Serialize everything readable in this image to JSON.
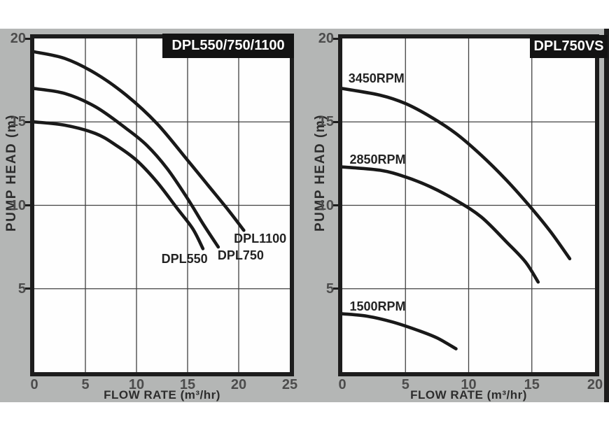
{
  "theme": {
    "panel_color": "#b4b6b5",
    "plot_background": "#fefefe",
    "border_color": "#1d1d1d",
    "grid_color": "#414141",
    "curve_color": "#191919",
    "title_box_background": "#131313",
    "title_text_color": "#ffffff",
    "tick_text_color": "#4c4c4c",
    "label_text_color": "#2d2d2d"
  },
  "chart_data": [
    {
      "type": "line",
      "title": "DPL550/750/1100",
      "xlabel": "FLOW RATE (m³/hr)",
      "ylabel": "PUMP HEAD  (m)",
      "xlim": [
        0,
        25
      ],
      "ylim": [
        0,
        20
      ],
      "x_ticks": [
        0,
        5,
        10,
        15,
        20,
        25
      ],
      "y_ticks": [
        5,
        10,
        15,
        20
      ],
      "grid": true,
      "grid_step": 5,
      "legend_position": "inline-labels",
      "series": [
        {
          "name": "DPL550",
          "label_pos": [
            14.7,
            6.8
          ],
          "points": [
            [
              0,
              15.0
            ],
            [
              3,
              14.8
            ],
            [
              6,
              14.3
            ],
            [
              8,
              13.6
            ],
            [
              10,
              12.7
            ],
            [
              12,
              11.4
            ],
            [
              14,
              9.8
            ],
            [
              15.5,
              8.6
            ],
            [
              16.5,
              7.4
            ]
          ]
        },
        {
          "name": "DPL750",
          "label_pos": [
            20.2,
            7.0
          ],
          "points": [
            [
              0,
              17.0
            ],
            [
              3,
              16.7
            ],
            [
              6,
              15.9
            ],
            [
              9,
              14.6
            ],
            [
              11,
              13.6
            ],
            [
              13,
              12.2
            ],
            [
              15,
              10.4
            ],
            [
              16.5,
              8.9
            ],
            [
              18,
              7.5
            ]
          ]
        },
        {
          "name": "DPL1100",
          "label_pos": [
            22.1,
            8.0
          ],
          "points": [
            [
              0,
              19.2
            ],
            [
              3,
              18.8
            ],
            [
              6,
              17.9
            ],
            [
              9,
              16.6
            ],
            [
              12,
              14.9
            ],
            [
              15,
              12.7
            ],
            [
              17,
              11.2
            ],
            [
              19,
              9.7
            ],
            [
              20.5,
              8.5
            ]
          ]
        }
      ]
    },
    {
      "type": "line",
      "title": "DPL750VS",
      "xlabel": "FLOW RATE (m³/hr)",
      "ylabel": "PUMP HEAD  (m)",
      "xlim": [
        0,
        20
      ],
      "ylim": [
        0,
        20
      ],
      "x_ticks": [
        0,
        5,
        10,
        15,
        20
      ],
      "y_ticks": [
        5,
        10,
        15,
        20
      ],
      "grid": true,
      "grid_step": 5,
      "legend_position": "inline-labels",
      "series": [
        {
          "name": "3450RPM",
          "label_pos": [
            2.7,
            17.6
          ],
          "points": [
            [
              0,
              17.0
            ],
            [
              3,
              16.6
            ],
            [
              5,
              16.1
            ],
            [
              7,
              15.3
            ],
            [
              9,
              14.3
            ],
            [
              11,
              13.0
            ],
            [
              13,
              11.5
            ],
            [
              15,
              9.8
            ],
            [
              16.5,
              8.4
            ],
            [
              18,
              6.8
            ]
          ]
        },
        {
          "name": "2850RPM",
          "label_pos": [
            2.8,
            12.75
          ],
          "points": [
            [
              0,
              12.3
            ],
            [
              3,
              12.1
            ],
            [
              5,
              11.7
            ],
            [
              7,
              11.1
            ],
            [
              9,
              10.3
            ],
            [
              11,
              9.3
            ],
            [
              13,
              7.8
            ],
            [
              14.5,
              6.6
            ],
            [
              15.5,
              5.4
            ]
          ]
        },
        {
          "name": "1500RPM",
          "label_pos": [
            2.8,
            3.95
          ],
          "points": [
            [
              0,
              3.5
            ],
            [
              2,
              3.35
            ],
            [
              4,
              3.0
            ],
            [
              6,
              2.5
            ],
            [
              7.5,
              2.05
            ],
            [
              9,
              1.4
            ]
          ]
        }
      ]
    }
  ]
}
